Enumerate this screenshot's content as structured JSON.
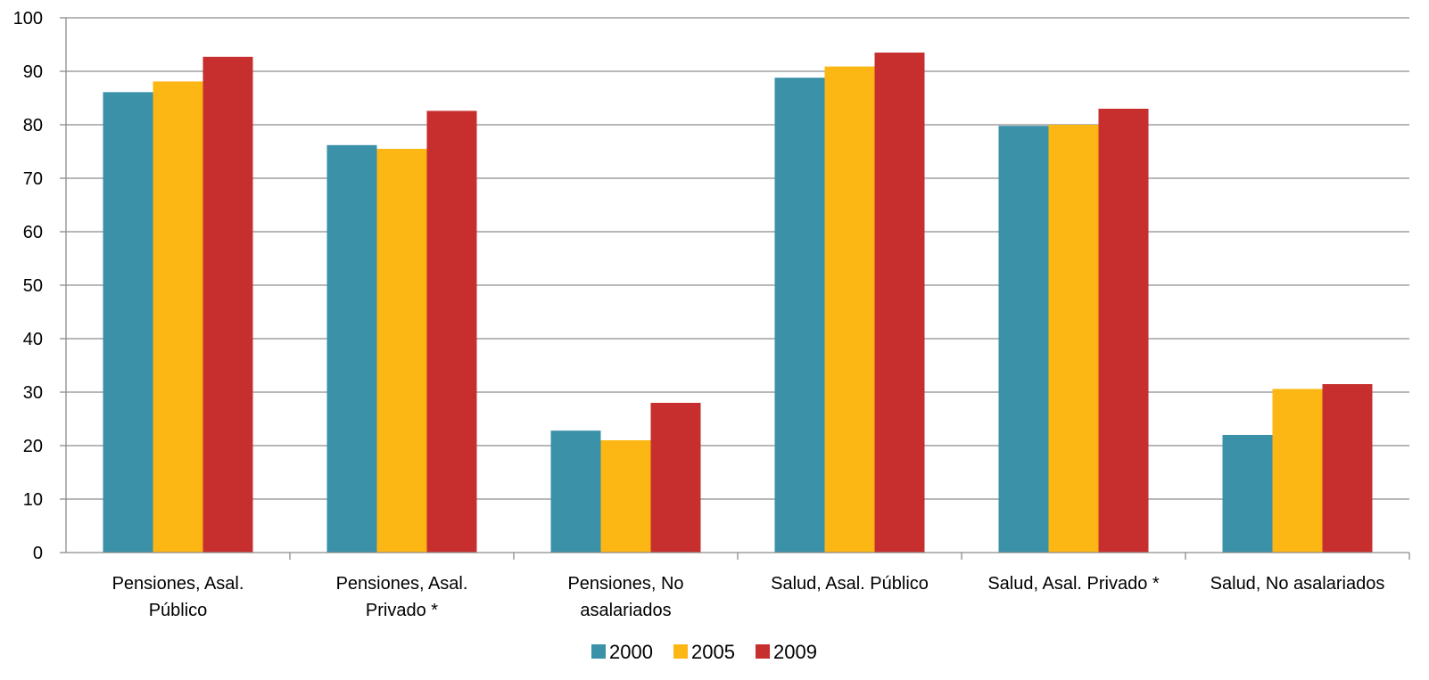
{
  "chart_data": {
    "type": "bar",
    "categories": [
      [
        "Pensiones, Asal.",
        "Público"
      ],
      [
        "Pensiones, Asal.",
        "Privado *"
      ],
      [
        "Pensiones, No",
        "asalariados"
      ],
      [
        "Salud, Asal. Público"
      ],
      [
        "Salud, Asal. Privado *"
      ],
      [
        "Salud, No asalariados"
      ]
    ],
    "series": [
      {
        "name": "2000",
        "color": "#3A91A8",
        "values": [
          86.1,
          76.2,
          22.8,
          88.8,
          79.8,
          22.0
        ]
      },
      {
        "name": "2005",
        "color": "#FDB714",
        "values": [
          88.1,
          75.5,
          21.0,
          90.9,
          80.0,
          30.6
        ]
      },
      {
        "name": "2009",
        "color": "#C72E2E",
        "values": [
          92.7,
          82.6,
          28.0,
          93.5,
          83.0,
          31.5
        ]
      }
    ],
    "ylim": [
      0,
      100
    ],
    "yticks": [
      0,
      10,
      20,
      30,
      40,
      50,
      60,
      70,
      80,
      90,
      100
    ],
    "grid": true,
    "legend_position": "bottom"
  }
}
